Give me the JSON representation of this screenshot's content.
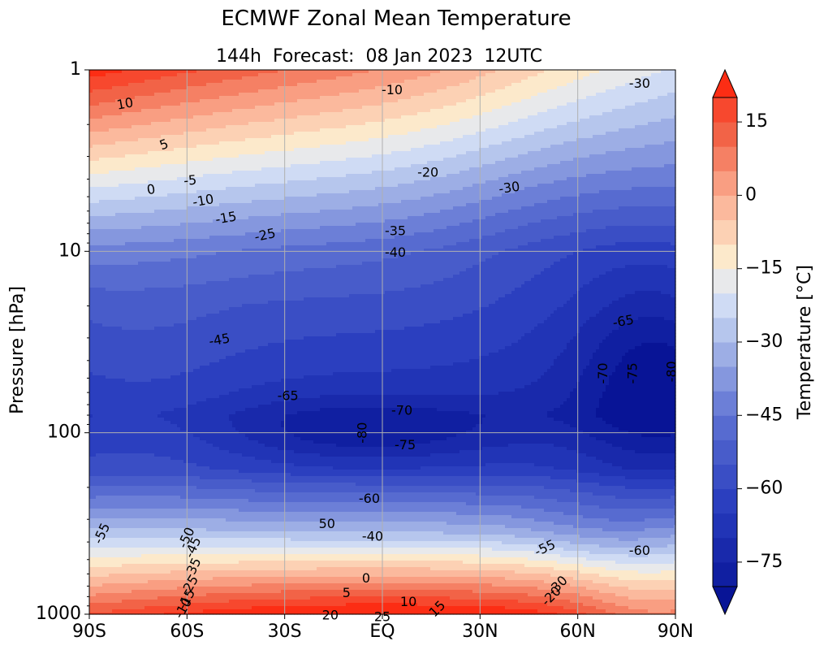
{
  "chart_data": {
    "type": "heatmap",
    "title": "ECMWF Zonal Mean Temperature",
    "subtitle": "144h  Forecast:  08 Jan 2023  12UTC",
    "ylabel": "Pressure [hPa]",
    "colorbar_label": "Temperature [°C]",
    "yscale": "log",
    "yaxis_inverted": true,
    "x_range": [
      -90,
      90
    ],
    "y_range": [
      1,
      1000
    ],
    "grid": true,
    "x_ticks": [
      {
        "value": -90,
        "label": "90S"
      },
      {
        "value": -60,
        "label": "60S"
      },
      {
        "value": -30,
        "label": "30S"
      },
      {
        "value": 0,
        "label": "EQ"
      },
      {
        "value": 30,
        "label": "30N"
      },
      {
        "value": 60,
        "label": "60N"
      },
      {
        "value": 90,
        "label": "90N"
      }
    ],
    "y_ticks": [
      {
        "value": 1,
        "label": "1"
      },
      {
        "value": 10,
        "label": "10"
      },
      {
        "value": 100,
        "label": "100"
      },
      {
        "value": 1000,
        "label": "1000"
      }
    ],
    "contour_interval": 5,
    "color_levels": [
      -80,
      -75,
      -70,
      -65,
      -60,
      -55,
      -50,
      -45,
      -40,
      -35,
      -30,
      -25,
      -20,
      -15,
      -10,
      -5,
      0,
      5,
      10,
      15,
      20
    ],
    "colorbar_extend": "both",
    "colorbar_ticks": [
      {
        "value": 15,
        "label": "15"
      },
      {
        "value": 0,
        "label": "0"
      },
      {
        "value": -15,
        "label": "−15"
      },
      {
        "value": -30,
        "label": "−30"
      },
      {
        "value": -45,
        "label": "−45"
      },
      {
        "value": -60,
        "label": "−60"
      },
      {
        "value": -75,
        "label": "−75"
      }
    ],
    "contour_labels": [
      {
        "text": "10",
        "lat": -79,
        "p": 1.55,
        "rot": -10
      },
      {
        "text": "5",
        "lat": -67,
        "p": 2.6,
        "rot": -20
      },
      {
        "text": "0",
        "lat": -71,
        "p": 4.6,
        "rot": -10
      },
      {
        "text": "-5",
        "lat": -59,
        "p": 4.1,
        "rot": -5
      },
      {
        "text": "-10",
        "lat": -55,
        "p": 5.3,
        "rot": -10
      },
      {
        "text": "-15",
        "lat": -48,
        "p": 6.6,
        "rot": -10
      },
      {
        "text": "-25",
        "lat": -36,
        "p": 8.2,
        "rot": -12
      },
      {
        "text": "-10",
        "lat": 3,
        "p": 1.3,
        "rot": 0
      },
      {
        "text": "-20",
        "lat": 14,
        "p": 3.7,
        "rot": 0
      },
      {
        "text": "-30",
        "lat": 39,
        "p": 4.5,
        "rot": -8
      },
      {
        "text": "-30",
        "lat": 79,
        "p": 1.2,
        "rot": 0
      },
      {
        "text": "-35",
        "lat": 4,
        "p": 7.8,
        "rot": 0
      },
      {
        "text": "-40",
        "lat": 4,
        "p": 10.2,
        "rot": 0
      },
      {
        "text": "-65",
        "lat": 74,
        "p": 24.5,
        "rot": -10
      },
      {
        "text": "-45",
        "lat": -50,
        "p": 31,
        "rot": -10
      },
      {
        "text": "-70",
        "lat": 68,
        "p": 47,
        "rot": -90
      },
      {
        "text": "-75",
        "lat": 77,
        "p": 47,
        "rot": -90
      },
      {
        "text": "-80",
        "lat": 89,
        "p": 46,
        "rot": -90
      },
      {
        "text": "-65",
        "lat": -29,
        "p": 63,
        "rot": 0
      },
      {
        "text": "-70",
        "lat": 6,
        "p": 76,
        "rot": 0
      },
      {
        "text": "-80",
        "lat": -6,
        "p": 100,
        "rot": -90
      },
      {
        "text": "-75",
        "lat": 7,
        "p": 118,
        "rot": 0
      },
      {
        "text": "-60",
        "lat": -4,
        "p": 232,
        "rot": 0
      },
      {
        "text": "50",
        "lat": -17,
        "p": 320,
        "rot": 0
      },
      {
        "text": "-40",
        "lat": -3,
        "p": 375,
        "rot": 0
      },
      {
        "text": "-55",
        "lat": 50,
        "p": 435,
        "rot": -25
      },
      {
        "text": "-60",
        "lat": 79,
        "p": 450,
        "rot": 0
      },
      {
        "text": "-55",
        "lat": -86,
        "p": 360,
        "rot": -65
      },
      {
        "text": "-50",
        "lat": -60,
        "p": 380,
        "rot": -65
      },
      {
        "text": "-45",
        "lat": -58,
        "p": 430,
        "rot": -65
      },
      {
        "text": "-35",
        "lat": -58,
        "p": 560,
        "rot": -65
      },
      {
        "text": "-25",
        "lat": -59,
        "p": 700,
        "rot": -60
      },
      {
        "text": "-15",
        "lat": -60,
        "p": 830,
        "rot": -60
      },
      {
        "text": "-10",
        "lat": -61,
        "p": 930,
        "rot": -60
      },
      {
        "text": "0",
        "lat": -5,
        "p": 640,
        "rot": 0
      },
      {
        "text": "5",
        "lat": -11,
        "p": 770,
        "rot": 0
      },
      {
        "text": "10",
        "lat": 8,
        "p": 860,
        "rot": 0
      },
      {
        "text": "15",
        "lat": 17,
        "p": 940,
        "rot": -45
      },
      {
        "text": "20",
        "lat": -16,
        "p": 1020,
        "rot": 0
      },
      {
        "text": "25",
        "lat": 0,
        "p": 1040,
        "rot": 0
      },
      {
        "text": "-20",
        "lat": 52,
        "p": 800,
        "rot": -45
      },
      {
        "text": "-30",
        "lat": 54,
        "p": 700,
        "rot": -45
      }
    ]
  }
}
